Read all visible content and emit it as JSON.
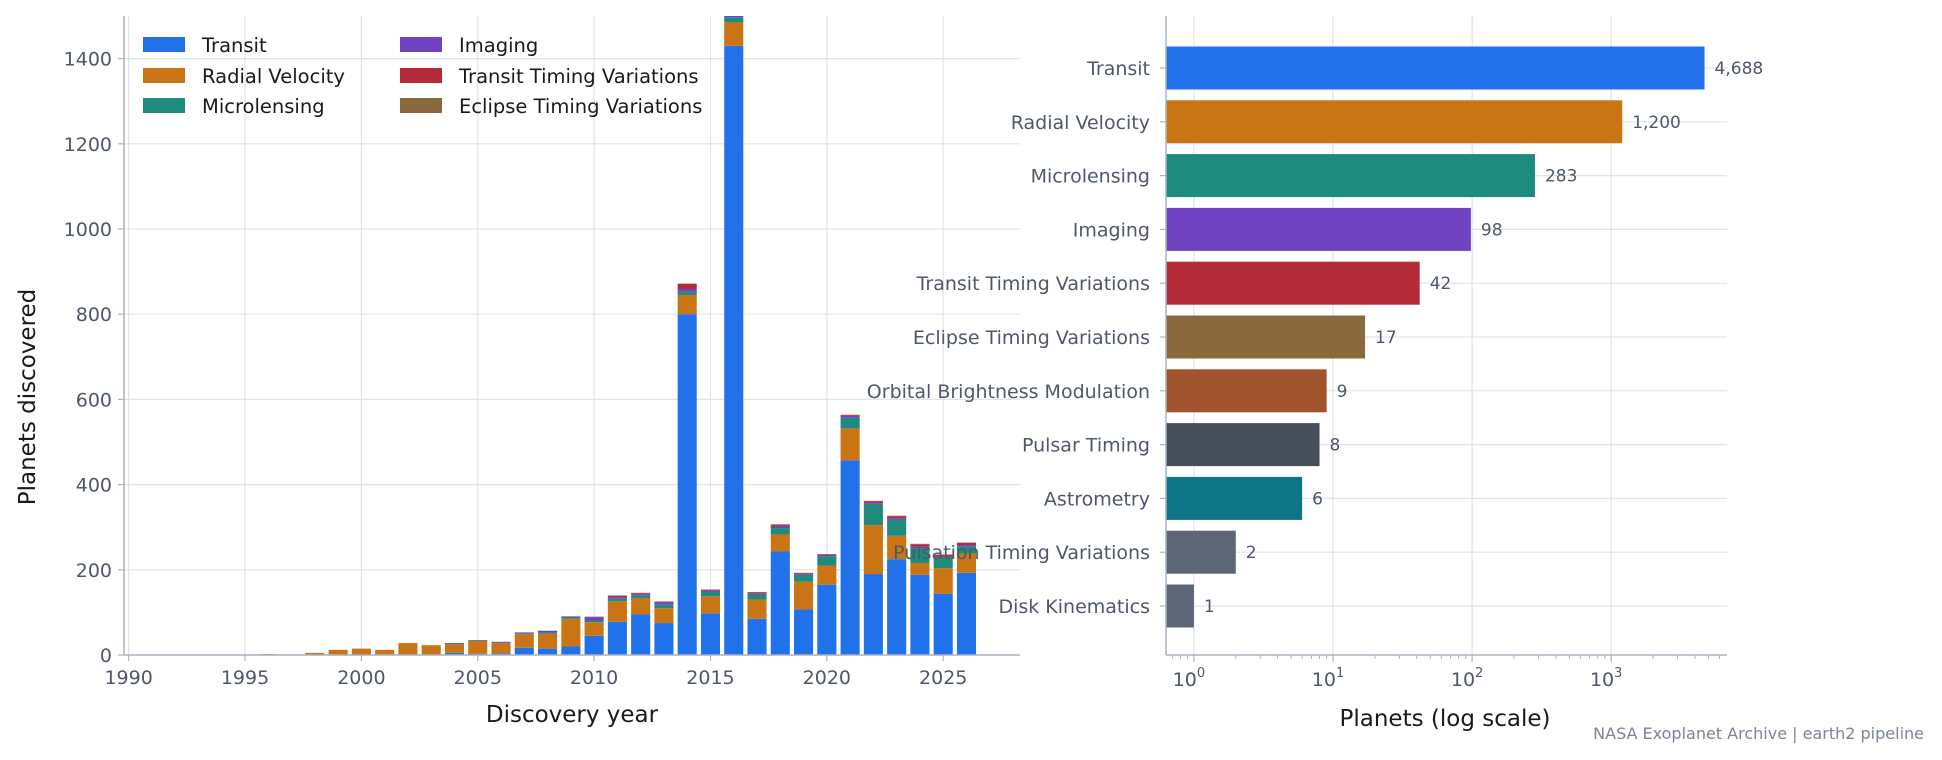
{
  "source_note": "NASA Exoplanet Archive | earth2 pipeline",
  "chart_data": [
    {
      "type": "bar",
      "stacked": true,
      "xlabel": "Discovery year",
      "ylabel": "Planets discovered",
      "xlim": [
        1989.8,
        2028.3
      ],
      "ylim": [
        0,
        1500
      ],
      "x_ticks": [
        1990,
        1995,
        2000,
        2005,
        2010,
        2015,
        2020,
        2025
      ],
      "y_ticks": [
        0,
        200,
        400,
        600,
        800,
        1000,
        1200,
        1400
      ],
      "grid": true,
      "legend_placement": "top-left",
      "legend_columns": 2,
      "categories": [
        1992,
        1994,
        1995,
        1996,
        1997,
        1998,
        1999,
        2000,
        2001,
        2002,
        2003,
        2004,
        2005,
        2006,
        2007,
        2008,
        2009,
        2010,
        2011,
        2012,
        2013,
        2014,
        2015,
        2016,
        2017,
        2018,
        2019,
        2020,
        2021,
        2022,
        2023,
        2024,
        2025,
        2026
      ],
      "series": [
        {
          "name": "Transit",
          "color": "#2171ea",
          "values": [
            0,
            0,
            0,
            0,
            0,
            0,
            0,
            0,
            0,
            1,
            1,
            5,
            3,
            4,
            17,
            15,
            20,
            45,
            78,
            95,
            75,
            800,
            98,
            1430,
            85,
            243,
            107,
            165,
            457,
            190,
            225,
            188,
            144,
            193
          ]
        },
        {
          "name": "Radial Velocity",
          "color": "#c97516",
          "values": [
            0,
            1,
            1,
            2,
            1,
            5,
            12,
            15,
            12,
            27,
            22,
            20,
            30,
            24,
            32,
            35,
            65,
            32,
            48,
            38,
            35,
            45,
            40,
            55,
            45,
            40,
            65,
            45,
            75,
            115,
            55,
            28,
            60,
            45
          ]
        },
        {
          "name": "Microlensing",
          "color": "#1f8a7e",
          "values": [
            0,
            0,
            0,
            0,
            0,
            0,
            0,
            0,
            0,
            0,
            0,
            2,
            1,
            1,
            2,
            3,
            3,
            4,
            6,
            7,
            8,
            8,
            10,
            12,
            12,
            15,
            16,
            22,
            25,
            50,
            38,
            35,
            25,
            17
          ]
        },
        {
          "name": "Imaging",
          "color": "#6e42c1",
          "values": [
            0,
            0,
            0,
            0,
            0,
            0,
            0,
            0,
            0,
            0,
            0,
            1,
            1,
            2,
            2,
            4,
            2,
            8,
            4,
            3,
            5,
            6,
            3,
            4,
            3,
            5,
            2,
            3,
            4,
            3,
            3,
            3,
            2,
            3
          ]
        },
        {
          "name": "Transit Timing Variations",
          "color": "#b52a38",
          "values": [
            0,
            0,
            0,
            0,
            0,
            0,
            0,
            0,
            0,
            0,
            0,
            0,
            0,
            0,
            0,
            0,
            0,
            0,
            3,
            2,
            2,
            12,
            2,
            3,
            2,
            3,
            2,
            1,
            2,
            3,
            5,
            6,
            4,
            5
          ]
        },
        {
          "name": "Eclipse Timing Variations",
          "color": "#8a6a3c",
          "values": [
            0,
            0,
            0,
            0,
            0,
            0,
            0,
            0,
            0,
            0,
            0,
            0,
            0,
            0,
            0,
            0,
            1,
            1,
            1,
            1,
            1,
            1,
            1,
            1,
            1,
            1,
            1,
            1,
            1,
            1,
            1,
            1,
            1,
            1
          ]
        }
      ]
    },
    {
      "type": "bar",
      "orientation": "horizontal",
      "xlabel": "Planets (log scale)",
      "ylabel": "",
      "log_x": true,
      "xlim": [
        0.63,
        6800
      ],
      "x_ticks": [
        1,
        10,
        100,
        1000
      ],
      "grid": true,
      "categories": [
        "Transit",
        "Radial Velocity",
        "Microlensing",
        "Imaging",
        "Transit Timing Variations",
        "Eclipse Timing Variations",
        "Orbital Brightness Modulation",
        "Pulsar Timing",
        "Astrometry",
        "Pulsation Timing Variations",
        "Disk Kinematics"
      ],
      "values": [
        4688,
        1200,
        283,
        98,
        42,
        17,
        9,
        8,
        6,
        2,
        1
      ],
      "value_labels": [
        "4,688",
        "1,200",
        "283",
        "98",
        "42",
        "17",
        "9",
        "8",
        "6",
        "2",
        "1"
      ],
      "colors": [
        "#2171ea",
        "#c97516",
        "#1f8a7e",
        "#6e42c1",
        "#b52a38",
        "#8a6a3c",
        "#a0522d",
        "#474f5a",
        "#0e7586",
        "#5c6677",
        "#5c6677"
      ]
    }
  ]
}
